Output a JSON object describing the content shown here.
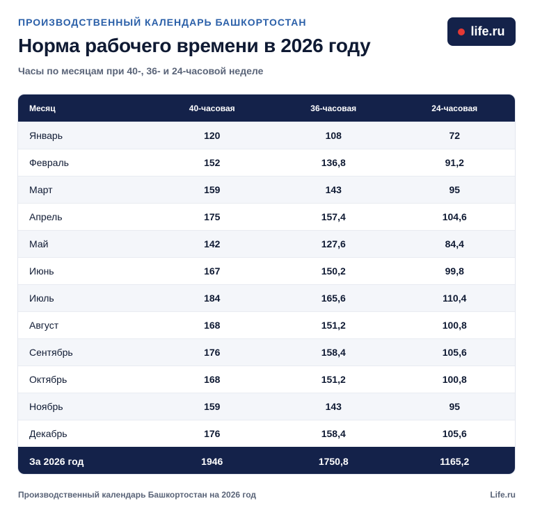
{
  "header": {
    "kicker": "ПРОИЗВОДСТВЕННЫЙ КАЛЕНДАРЬ БАШКОРТОСТАН",
    "title": "Норма рабочего времени в 2026 году",
    "subtitle": "Часы по месяцам при 40-, 36- и 24-часовой неделе"
  },
  "logo": {
    "text": "life.ru",
    "dot_color": "#e53935"
  },
  "table": {
    "columns": [
      "Месяц",
      "40-часовая",
      "36-часовая",
      "24-часовая"
    ],
    "rows": [
      [
        "Январь",
        "120",
        "108",
        "72"
      ],
      [
        "Февраль",
        "152",
        "136,8",
        "91,2"
      ],
      [
        "Март",
        "159",
        "143",
        "95"
      ],
      [
        "Апрель",
        "175",
        "157,4",
        "104,6"
      ],
      [
        "Май",
        "142",
        "127,6",
        "84,4"
      ],
      [
        "Июнь",
        "167",
        "150,2",
        "99,8"
      ],
      [
        "Июль",
        "184",
        "165,6",
        "110,4"
      ],
      [
        "Август",
        "168",
        "151,2",
        "100,8"
      ],
      [
        "Сентябрь",
        "176",
        "158,4",
        "105,6"
      ],
      [
        "Октябрь",
        "168",
        "151,2",
        "100,8"
      ],
      [
        "Ноябрь",
        "159",
        "143",
        "95"
      ],
      [
        "Декабрь",
        "176",
        "158,4",
        "105,6"
      ]
    ],
    "total": [
      "За 2026 год",
      "1946",
      "1750,8",
      "1165,2"
    ]
  },
  "footer": {
    "source": "Производственный календарь Башкортостан на 2026 год",
    "brand": "Life.ru"
  },
  "colors": {
    "navy": "#14224a",
    "accent": "#2a5fa8"
  }
}
